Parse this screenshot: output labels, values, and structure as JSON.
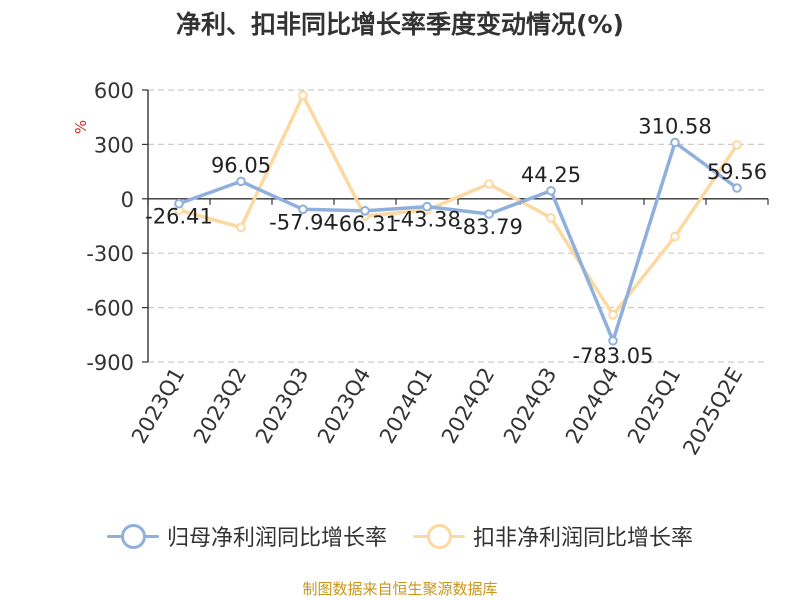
{
  "page": {
    "title": "净利、扣非同比增长率季度变动情况(%)",
    "unit_label": "%",
    "source": "制图数据来自恒生聚源数据库"
  },
  "chart_data": {
    "type": "line",
    "title": "净利、扣非同比增长率季度变动情况(%)",
    "xlabel": "",
    "ylabel": "%",
    "categories": [
      "2023Q1",
      "2023Q2",
      "2023Q3",
      "2023Q4",
      "2024Q1",
      "2024Q2",
      "2024Q3",
      "2024Q4",
      "2025Q1",
      "2025Q2E"
    ],
    "ylim": [
      -900,
      600
    ],
    "yticks": [
      600,
      300,
      0,
      -300,
      -600,
      -900
    ],
    "grid": true,
    "legend_position": "bottom",
    "series": [
      {
        "name": "归母净利润同比增长率",
        "color": "#8fb0dc",
        "values": [
          -26.41,
          96.05,
          -57.94,
          -66.31,
          -43.38,
          -83.79,
          44.25,
          -783.05,
          310.58,
          59.56
        ],
        "data_labels": [
          "-26.41",
          "96.05",
          "-57.94",
          "-66.31",
          "-43.38",
          "-83.79",
          "44.25",
          "-783.05",
          "310.58",
          "59.56"
        ]
      },
      {
        "name": "扣非净利润同比增长率",
        "color": "#fcd9a1",
        "values": [
          -62,
          -158,
          570,
          -95,
          -62,
          82,
          -105,
          -640,
          -208,
          297
        ]
      }
    ]
  }
}
